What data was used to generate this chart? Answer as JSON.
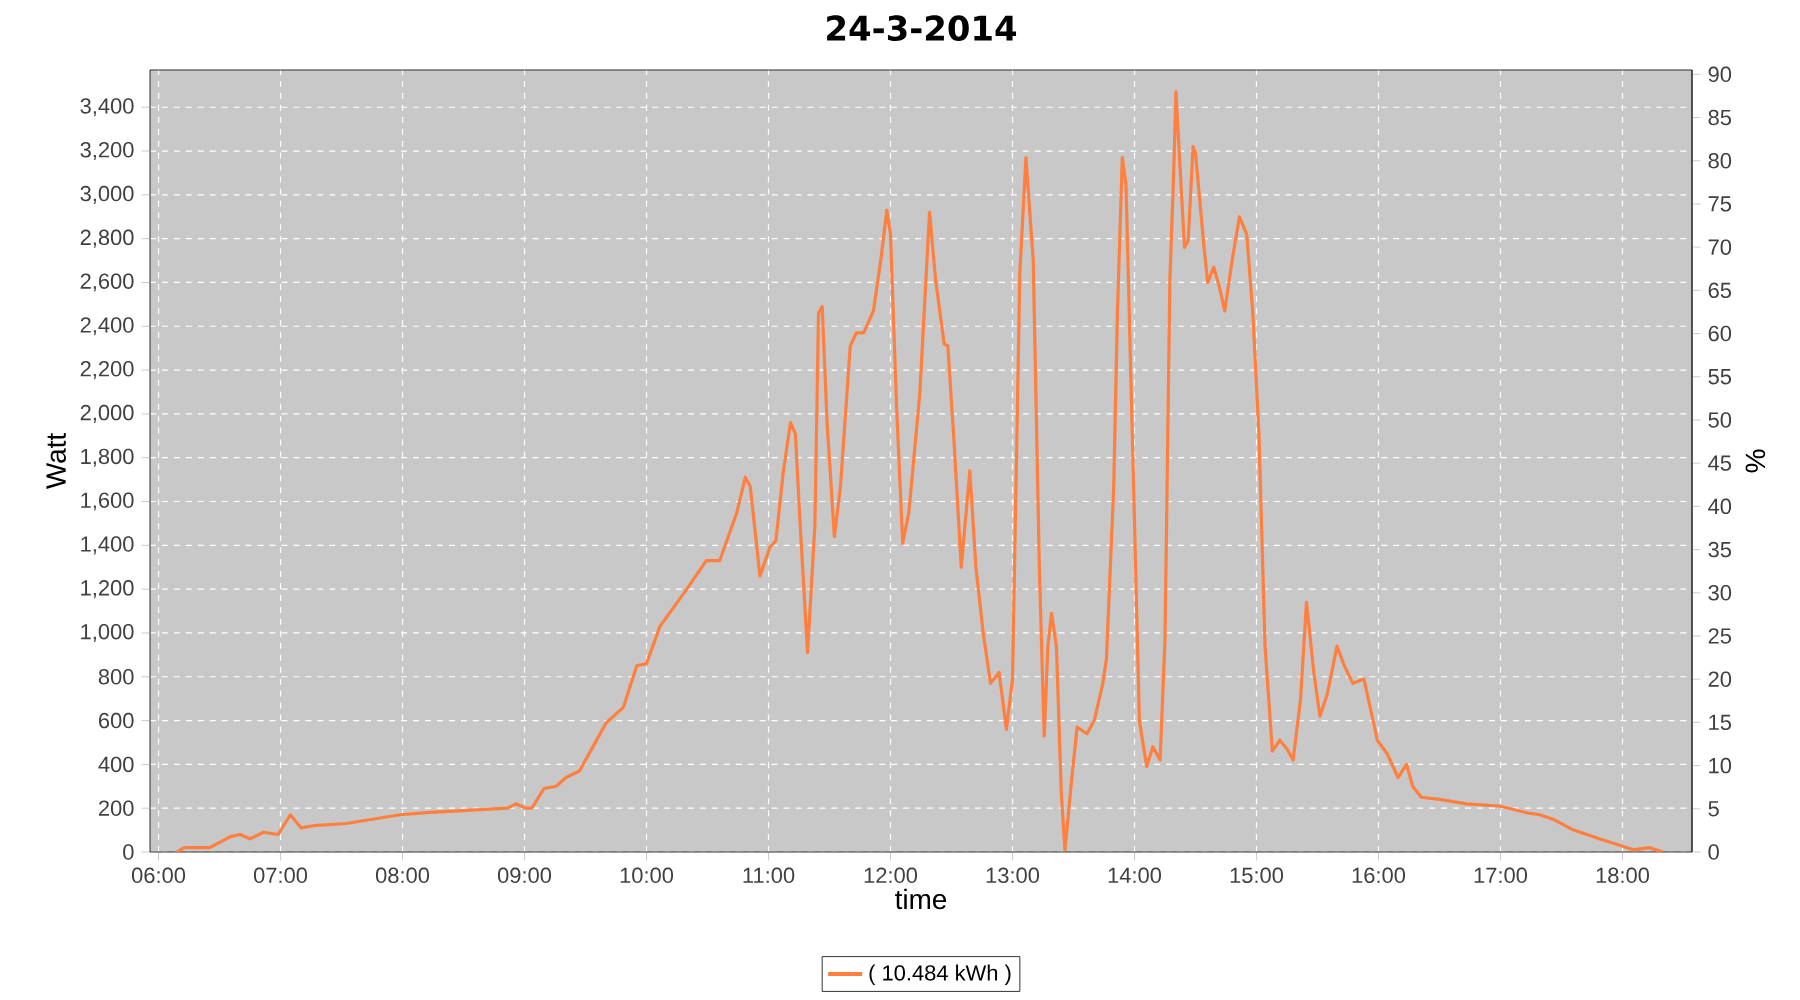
{
  "chart_data": {
    "type": "line",
    "title": "24-3-2014",
    "xlabel": "time",
    "ylabel": "Watt",
    "y2label": "%",
    "x": [
      6.15,
      6.21,
      6.42,
      6.59,
      6.67,
      6.75,
      6.86,
      6.98,
      7.08,
      7.17,
      7.27,
      7.54,
      7.76,
      7.98,
      8.2,
      8.53,
      8.86,
      8.93,
      9.01,
      9.06,
      9.16,
      9.26,
      9.34,
      9.45,
      9.56,
      9.67,
      9.81,
      9.92,
      10.0,
      10.11,
      10.33,
      10.49,
      10.6,
      10.74,
      10.81,
      10.85,
      10.93,
      11.01,
      11.06,
      11.12,
      11.18,
      11.22,
      11.26,
      11.32,
      11.38,
      11.41,
      11.44,
      11.48,
      11.54,
      11.59,
      11.67,
      11.72,
      11.78,
      11.86,
      11.92,
      11.97,
      12.0,
      12.05,
      12.1,
      12.15,
      12.24,
      12.32,
      12.37,
      12.44,
      12.47,
      12.52,
      12.58,
      12.65,
      12.7,
      12.76,
      12.82,
      12.89,
      12.95,
      13.0,
      13.06,
      13.11,
      13.17,
      13.22,
      13.26,
      13.29,
      13.32,
      13.36,
      13.4,
      13.43,
      13.49,
      13.53,
      13.61,
      13.67,
      13.74,
      13.77,
      13.83,
      13.86,
      13.9,
      13.93,
      13.99,
      14.04,
      14.1,
      14.15,
      14.21,
      14.25,
      14.29,
      14.32,
      14.34,
      14.37,
      14.41,
      14.44,
      14.48,
      14.5,
      14.57,
      14.6,
      14.65,
      14.7,
      14.74,
      14.8,
      14.86,
      14.92,
      14.97,
      15.02,
      15.07,
      15.13,
      15.19,
      15.25,
      15.3,
      15.36,
      15.41,
      15.47,
      15.52,
      15.58,
      15.66,
      15.72,
      15.79,
      15.88,
      15.96,
      15.99,
      16.07,
      16.16,
      16.23,
      16.28,
      16.35,
      16.5,
      16.72,
      16.99,
      17.21,
      17.32,
      17.43,
      17.6,
      17.81,
      18.09,
      18.22,
      18.33
    ],
    "series": [
      {
        "name": "( 10.484 kWh )",
        "color": "#ff7f3f",
        "values": [
          0,
          20,
          20,
          70,
          80,
          60,
          90,
          80,
          170,
          110,
          120,
          130,
          150,
          170,
          180,
          190,
          200,
          220,
          200,
          200,
          290,
          300,
          340,
          370,
          480,
          590,
          660,
          850,
          860,
          1030,
          1200,
          1330,
          1330,
          1550,
          1710,
          1670,
          1260,
          1390,
          1420,
          1730,
          1960,
          1910,
          1490,
          910,
          1490,
          2460,
          2490,
          1960,
          1440,
          1670,
          2310,
          2370,
          2370,
          2470,
          2700,
          2930,
          2820,
          2030,
          1410,
          1550,
          2090,
          2920,
          2610,
          2320,
          2310,
          1880,
          1300,
          1740,
          1300,
          1000,
          770,
          820,
          560,
          790,
          2640,
          3170,
          2700,
          1300,
          530,
          940,
          1090,
          940,
          270,
          10,
          360,
          570,
          540,
          600,
          770,
          880,
          1670,
          2460,
          3170,
          3050,
          1730,
          600,
          390,
          480,
          420,
          970,
          2610,
          3080,
          3470,
          3160,
          2760,
          2790,
          3220,
          3190,
          2760,
          2600,
          2670,
          2570,
          2470,
          2700,
          2900,
          2820,
          2460,
          1910,
          940,
          460,
          510,
          470,
          420,
          690,
          1140,
          820,
          620,
          720,
          940,
          850,
          770,
          790,
          590,
          510,
          450,
          340,
          400,
          300,
          250,
          240,
          220,
          210,
          180,
          170,
          150,
          100,
          60,
          10,
          20,
          0
        ]
      }
    ],
    "xlim": [
      5.93,
      18.57
    ],
    "ylim": [
      0,
      3570
    ],
    "y2lim": [
      0,
      90.5
    ],
    "xticks": [
      {
        "value": 6,
        "label": "06:00"
      },
      {
        "value": 7,
        "label": "07:00"
      },
      {
        "value": 8,
        "label": "08:00"
      },
      {
        "value": 9,
        "label": "09:00"
      },
      {
        "value": 10,
        "label": "10:00"
      },
      {
        "value": 11,
        "label": "11:00"
      },
      {
        "value": 12,
        "label": "12:00"
      },
      {
        "value": 13,
        "label": "13:00"
      },
      {
        "value": 14,
        "label": "14:00"
      },
      {
        "value": 15,
        "label": "15:00"
      },
      {
        "value": 16,
        "label": "16:00"
      },
      {
        "value": 17,
        "label": "17:00"
      },
      {
        "value": 18,
        "label": "18:00"
      }
    ],
    "yticks": [
      0,
      200,
      400,
      600,
      800,
      {
        "value": 1000,
        "label": "1,000"
      },
      {
        "value": 1200,
        "label": "1,200"
      },
      {
        "value": 1400,
        "label": "1,400"
      },
      {
        "value": 1600,
        "label": "1,600"
      },
      {
        "value": 1800,
        "label": "1,800"
      },
      {
        "value": 2000,
        "label": "2,000"
      },
      {
        "value": 2200,
        "label": "2,200"
      },
      {
        "value": 2400,
        "label": "2,400"
      },
      {
        "value": 2600,
        "label": "2,600"
      },
      {
        "value": 2800,
        "label": "2,800"
      },
      {
        "value": 3000,
        "label": "3,000"
      },
      {
        "value": 3200,
        "label": "3,200"
      },
      {
        "value": 3400,
        "label": "3,400"
      }
    ],
    "y2ticks": [
      0,
      5,
      10,
      15,
      20,
      25,
      30,
      35,
      40,
      45,
      50,
      55,
      60,
      65,
      70,
      75,
      80,
      85,
      90
    ],
    "grid": true,
    "legend": "bottom"
  }
}
